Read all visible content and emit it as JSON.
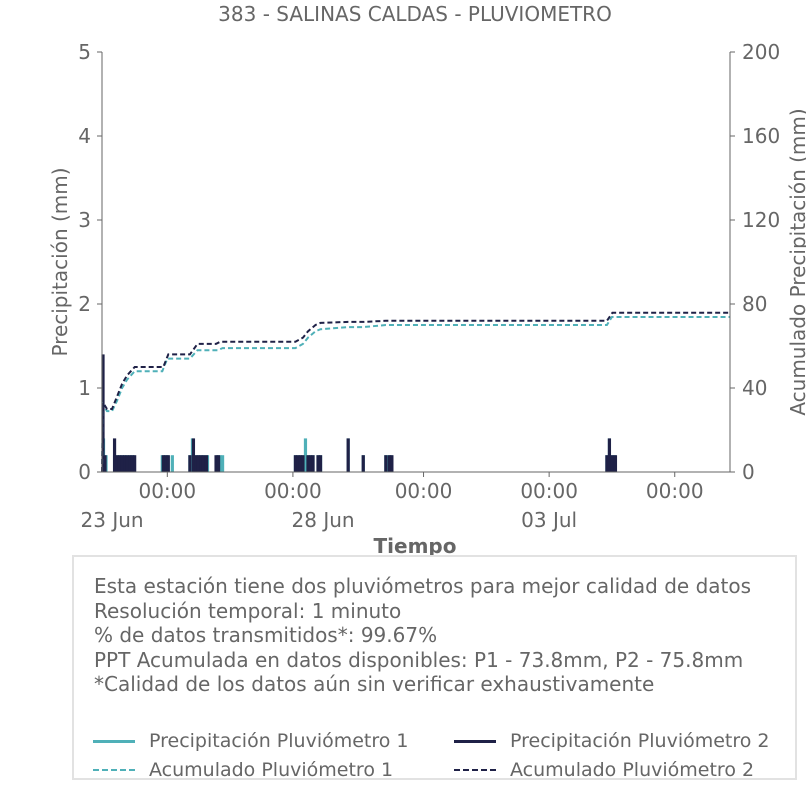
{
  "colors": {
    "p1": "#4fb0b8",
    "p2": "#1f2147",
    "axis": "#666666",
    "box_border": "#e2e2e2"
  },
  "chart_data": {
    "type": "bar",
    "title": "383 - SALINAS CALDAS - PLUVIOMETRO",
    "xlabel": "Tiempo",
    "ylabel": "Precipitación (mm)",
    "y2label": "Acumulado Precipitación (mm)",
    "xlim": [
      -0.3,
      12.2
    ],
    "ylim": [
      0,
      5
    ],
    "y2lim": [
      0,
      200
    ],
    "y_ticks": [
      "0",
      "1",
      "2",
      "3",
      "4",
      "5"
    ],
    "y2_ticks": [
      "0",
      "40",
      "80",
      "120",
      "160",
      "200"
    ],
    "x_ticks": [
      {
        "x": 1,
        "label": "00:00"
      },
      {
        "x": 3.5,
        "label": "00:00"
      },
      {
        "x": 6.1,
        "label": "00:00"
      },
      {
        "x": 8.6,
        "label": "00:00"
      },
      {
        "x": 11.1,
        "label": "00:00"
      }
    ],
    "x_date_labels": [
      {
        "x": -0.1,
        "label": "23 Jun"
      },
      {
        "x": 4.1,
        "label": "28 Jun"
      },
      {
        "x": 8.6,
        "label": "03 Jul"
      }
    ],
    "series": [
      {
        "name": "Precipitación Pluviómetro 1",
        "kind": "bar",
        "points": [
          [
            -0.27,
            0.4
          ],
          [
            -0.22,
            0.2
          ],
          [
            -0.05,
            0.2
          ],
          [
            0.0,
            0.2
          ],
          [
            0.05,
            0.2
          ],
          [
            0.1,
            0.2
          ],
          [
            0.15,
            0.2
          ],
          [
            0.2,
            0.2
          ],
          [
            0.27,
            0.2
          ],
          [
            0.32,
            0.2
          ],
          [
            0.9,
            0.2
          ],
          [
            0.95,
            0.2
          ],
          [
            1.0,
            0.2
          ],
          [
            1.1,
            0.2
          ],
          [
            1.45,
            0.2
          ],
          [
            1.5,
            0.4
          ],
          [
            1.55,
            0.2
          ],
          [
            1.6,
            0.2
          ],
          [
            1.65,
            0.2
          ],
          [
            1.7,
            0.2
          ],
          [
            1.75,
            0.2
          ],
          [
            1.8,
            0.2
          ],
          [
            2.0,
            0.2
          ],
          [
            2.05,
            0.2
          ],
          [
            2.1,
            0.2
          ],
          [
            3.55,
            0.2
          ],
          [
            3.6,
            0.2
          ],
          [
            3.65,
            0.2
          ],
          [
            3.7,
            0.2
          ],
          [
            3.75,
            0.4
          ],
          [
            3.8,
            0.2
          ],
          [
            3.85,
            0.2
          ],
          [
            3.9,
            0.2
          ],
          [
            4.0,
            0.2
          ],
          [
            4.05,
            0.2
          ],
          [
            4.6,
            0.4
          ],
          [
            4.9,
            0.2
          ],
          [
            5.35,
            0.2
          ],
          [
            5.4,
            0.2
          ],
          [
            5.45,
            0.2
          ],
          [
            9.75,
            0.2
          ],
          [
            9.8,
            0.4
          ],
          [
            9.85,
            0.2
          ],
          [
            9.9,
            0.2
          ]
        ]
      },
      {
        "name": "Precipitación Pluviómetro 2",
        "kind": "bar",
        "points": [
          [
            -0.28,
            1.4
          ],
          [
            -0.24,
            0.2
          ],
          [
            -0.05,
            0.4
          ],
          [
            0.0,
            0.2
          ],
          [
            0.05,
            0.2
          ],
          [
            0.1,
            0.2
          ],
          [
            0.15,
            0.2
          ],
          [
            0.2,
            0.2
          ],
          [
            0.25,
            0.2
          ],
          [
            0.3,
            0.2
          ],
          [
            0.35,
            0.2
          ],
          [
            0.92,
            0.2
          ],
          [
            0.97,
            0.2
          ],
          [
            1.02,
            0.2
          ],
          [
            1.45,
            0.2
          ],
          [
            1.52,
            0.4
          ],
          [
            1.57,
            0.2
          ],
          [
            1.62,
            0.2
          ],
          [
            1.67,
            0.2
          ],
          [
            1.72,
            0.2
          ],
          [
            1.78,
            0.2
          ],
          [
            1.97,
            0.2
          ],
          [
            2.02,
            0.2
          ],
          [
            3.55,
            0.2
          ],
          [
            3.6,
            0.2
          ],
          [
            3.65,
            0.2
          ],
          [
            3.7,
            0.2
          ],
          [
            3.8,
            0.2
          ],
          [
            3.85,
            0.2
          ],
          [
            3.9,
            0.2
          ],
          [
            4.0,
            0.2
          ],
          [
            4.05,
            0.2
          ],
          [
            4.6,
            0.4
          ],
          [
            4.9,
            0.2
          ],
          [
            5.35,
            0.2
          ],
          [
            5.42,
            0.2
          ],
          [
            5.47,
            0.2
          ],
          [
            9.75,
            0.2
          ],
          [
            9.8,
            0.4
          ],
          [
            9.86,
            0.2
          ],
          [
            9.92,
            0.2
          ]
        ]
      },
      {
        "name": "Acumulado Pluviómetro 1",
        "kind": "step",
        "axis": "y2",
        "points": [
          [
            -0.3,
            0
          ],
          [
            -0.28,
            32
          ],
          [
            -0.2,
            29
          ],
          [
            -0.1,
            29
          ],
          [
            0.0,
            34
          ],
          [
            0.1,
            40
          ],
          [
            0.2,
            44
          ],
          [
            0.35,
            48
          ],
          [
            0.9,
            48
          ],
          [
            1.0,
            54
          ],
          [
            1.45,
            54
          ],
          [
            1.6,
            58
          ],
          [
            2.0,
            58
          ],
          [
            2.1,
            59
          ],
          [
            3.55,
            59
          ],
          [
            3.7,
            61
          ],
          [
            3.8,
            64
          ],
          [
            3.95,
            67
          ],
          [
            4.05,
            68
          ],
          [
            4.6,
            69
          ],
          [
            4.9,
            69
          ],
          [
            5.35,
            70
          ],
          [
            5.45,
            70
          ],
          [
            9.75,
            70
          ],
          [
            9.85,
            73.8
          ],
          [
            12.2,
            73.8
          ]
        ]
      },
      {
        "name": "Acumulado Pluviómetro 2",
        "kind": "step",
        "axis": "y2",
        "points": [
          [
            -0.3,
            0
          ],
          [
            -0.28,
            33
          ],
          [
            -0.2,
            30
          ],
          [
            -0.1,
            30
          ],
          [
            0.0,
            36
          ],
          [
            0.1,
            42
          ],
          [
            0.2,
            46
          ],
          [
            0.35,
            50
          ],
          [
            0.92,
            50
          ],
          [
            1.02,
            56
          ],
          [
            1.45,
            56
          ],
          [
            1.6,
            61
          ],
          [
            1.97,
            61
          ],
          [
            2.05,
            62
          ],
          [
            3.55,
            62
          ],
          [
            3.7,
            64
          ],
          [
            3.8,
            67
          ],
          [
            3.95,
            70
          ],
          [
            4.05,
            71
          ],
          [
            4.6,
            71.5
          ],
          [
            4.9,
            71.5
          ],
          [
            5.35,
            72
          ],
          [
            5.47,
            72
          ],
          [
            9.75,
            72
          ],
          [
            9.86,
            75.8
          ],
          [
            12.2,
            75.8
          ]
        ]
      }
    ]
  },
  "info": {
    "lines": [
      "Esta estación tiene dos pluviómetros para mejor calidad de datos",
      "Resolución temporal: 1 minuto",
      "% de datos transmitidos*: 99.67%",
      "PPT Acumulada en datos disponibles: P1 - 73.8mm, P2 - 75.8mm",
      "*Calidad de los datos aún sin verificar exhaustivamente"
    ]
  }
}
